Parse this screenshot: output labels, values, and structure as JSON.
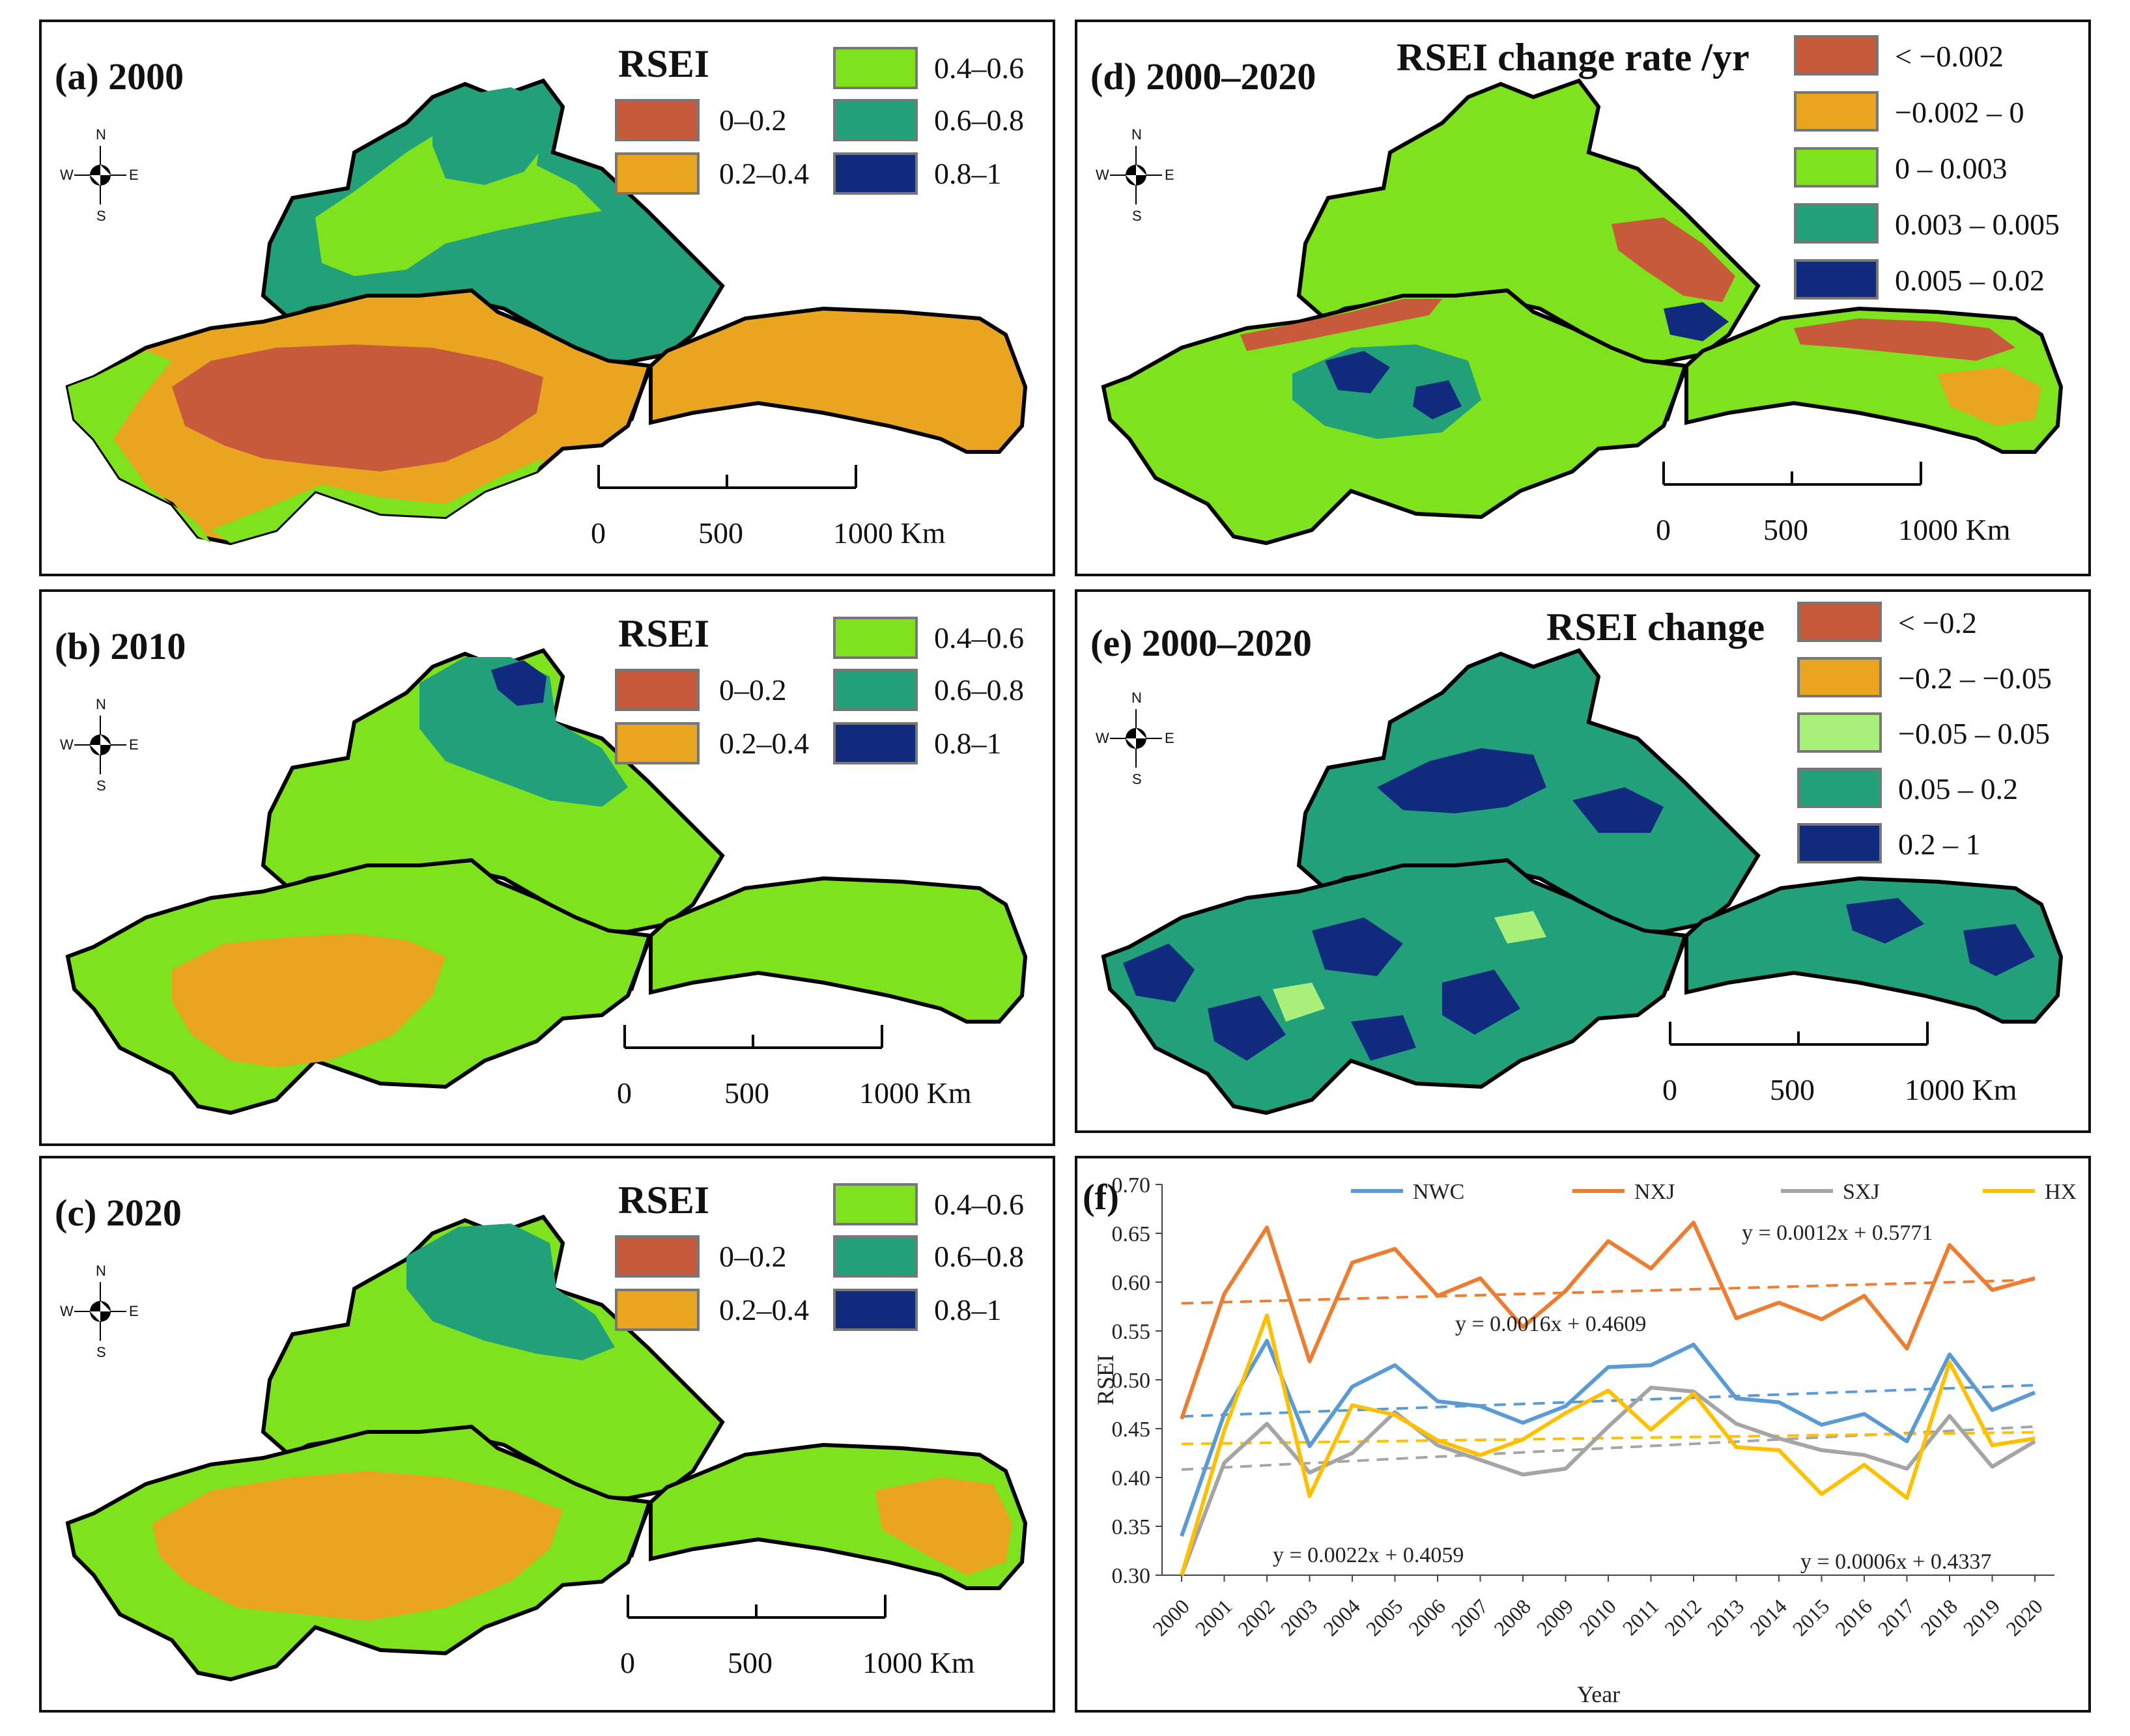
{
  "colors": {
    "c1": "#c85a3c",
    "c2": "#eaa520",
    "c3": "#7ee21c",
    "c4": "#22a07a",
    "c5": "#102a7e",
    "e3": "#a8f07a",
    "series": {
      "NWC": "#5b9bd5",
      "NXJ": "#ed7d31",
      "SXJ": "#a5a5a5",
      "HX": "#ffc000"
    }
  },
  "compass": {
    "n": "N",
    "s": "S",
    "e": "E",
    "w": "W"
  },
  "scalebar": {
    "t0": "0",
    "t1": "500",
    "t2": "1000 Km"
  },
  "rsei_legend": {
    "title": "RSEI",
    "items": [
      "0–0.2",
      "0.2–0.4",
      "0.4–0.6",
      "0.6–0.8",
      "0.8–1"
    ]
  },
  "panels": {
    "a": {
      "label": "(a) 2000"
    },
    "b": {
      "label": "(b) 2010"
    },
    "c": {
      "label": "(c) 2020"
    },
    "d": {
      "label": "(d) 2000–2020",
      "legend_title": "RSEI change rate /yr",
      "items": [
        "< −0.002",
        "−0.002 – 0",
        "0 – 0.003",
        "0.003 – 0.005",
        "0.005 – 0.02"
      ]
    },
    "e": {
      "label": "(e) 2000–2020",
      "legend_title": "RSEI change",
      "items": [
        "< −0.2",
        "−0.2 – −0.05",
        "−0.05 – 0.05",
        "0.05 – 0.2",
        "0.2 – 1"
      ]
    }
  },
  "chart_data": {
    "type": "line",
    "panel_label": "(f)",
    "xlabel": "Year",
    "ylabel": "RSEI",
    "ylim": [
      0.3,
      0.7
    ],
    "yticks": [
      "0.30",
      "0.35",
      "0.40",
      "0.45",
      "0.50",
      "0.55",
      "0.60",
      "0.65",
      "0.70"
    ],
    "categories": [
      "2000",
      "2001",
      "2002",
      "2003",
      "2004",
      "2005",
      "2006",
      "2007",
      "2008",
      "2009",
      "2010",
      "2011",
      "2012",
      "2013",
      "2014",
      "2015",
      "2016",
      "2017",
      "2018",
      "2019",
      "2020"
    ],
    "series": [
      {
        "name": "NWC",
        "values": [
          0.34,
          0.465,
          0.54,
          0.432,
          0.493,
          0.515,
          0.478,
          0.473,
          0.456,
          0.473,
          0.513,
          0.515,
          0.536,
          0.481,
          0.477,
          0.454,
          0.465,
          0.437,
          0.526,
          0.469,
          0.487
        ],
        "trend": [
          0.0016,
          0.4609
        ]
      },
      {
        "name": "NXJ",
        "values": [
          0.46,
          0.588,
          0.656,
          0.519,
          0.62,
          0.634,
          0.586,
          0.604,
          0.554,
          0.591,
          0.642,
          0.614,
          0.661,
          0.563,
          0.579,
          0.562,
          0.586,
          0.532,
          0.638,
          0.592,
          0.604
        ],
        "trend": [
          0.0012,
          0.5771
        ]
      },
      {
        "name": "SXJ",
        "values": [
          0.3,
          0.415,
          0.455,
          0.405,
          0.425,
          0.467,
          0.433,
          0.418,
          0.403,
          0.409,
          0.452,
          0.492,
          0.488,
          0.455,
          0.44,
          0.428,
          0.423,
          0.409,
          0.463,
          0.411,
          0.437
        ],
        "trend": [
          0.0022,
          0.4059
        ]
      },
      {
        "name": "HX",
        "values": [
          0.3,
          0.448,
          0.566,
          0.381,
          0.474,
          0.464,
          0.438,
          0.423,
          0.439,
          0.466,
          0.489,
          0.449,
          0.486,
          0.431,
          0.428,
          0.383,
          0.413,
          0.379,
          0.518,
          0.433,
          0.44
        ],
        "trend": [
          0.0006,
          0.4337
        ]
      }
    ],
    "equations": {
      "NXJ": "y = 0.0012x + 0.5771",
      "NWC": "y = 0.0016x + 0.4609",
      "SXJ": "y = 0.0022x + 0.4059",
      "HX": "y = 0.0006x + 0.4337"
    }
  }
}
